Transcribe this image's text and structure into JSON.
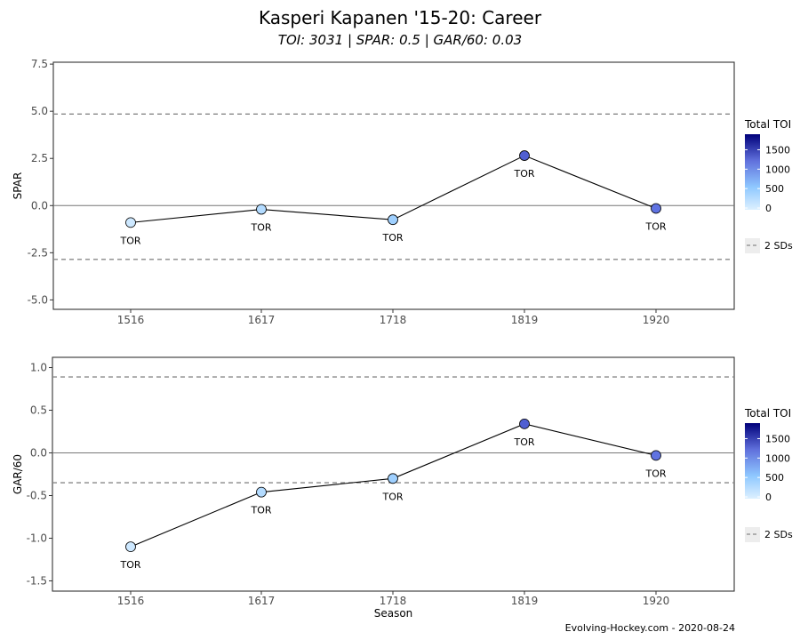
{
  "header": {
    "title": "Kasperi Kapanen '15-20: Career",
    "subtitle": "TOI: 3031 | SPAR: 0.5 | GAR/60: 0.03"
  },
  "footer": {
    "caption": "Evolving-Hockey.com - 2020-08-24"
  },
  "legend": {
    "title": "Total TOI",
    "ticks": [
      "1500",
      "1000",
      "500",
      "0"
    ],
    "sd_label": "2 SDs"
  },
  "chart_data": [
    {
      "type": "line",
      "ylabel": "SPAR",
      "xlabel": "",
      "categories": [
        "1516",
        "1617",
        "1718",
        "1819",
        "1920"
      ],
      "values": [
        -0.9,
        -0.2,
        -0.75,
        2.65,
        -0.15
      ],
      "toi": [
        60,
        160,
        240,
        1500,
        1100
      ],
      "point_labels": [
        "TOR",
        "TOR",
        "TOR",
        "TOR",
        "TOR"
      ],
      "ylim": [
        -5.5,
        7.6
      ],
      "yticks": [
        "7.5",
        "5.0",
        "2.5",
        "0.0",
        "-2.5",
        "-5.0"
      ],
      "sd_lines": [
        4.85,
        -2.85
      ],
      "zero_line": 0
    },
    {
      "type": "line",
      "ylabel": "GAR/60",
      "xlabel": "Season",
      "categories": [
        "1516",
        "1617",
        "1718",
        "1819",
        "1920"
      ],
      "values": [
        -1.1,
        -0.46,
        -0.3,
        0.34,
        -0.03
      ],
      "toi": [
        60,
        160,
        240,
        1500,
        1100
      ],
      "point_labels": [
        "TOR",
        "TOR",
        "TOR",
        "TOR",
        "TOR"
      ],
      "ylim": [
        -1.62,
        1.12
      ],
      "yticks": [
        "1.0",
        "0.5",
        "0.0",
        "-0.5",
        "-1.0",
        "-1.5"
      ],
      "sd_lines": [
        0.89,
        -0.35
      ],
      "zero_line": 0
    }
  ],
  "colors": {
    "low_toi": "#ddf0ff",
    "mid_toi": "#8fc8ff",
    "high_toi": "#5566d6",
    "max_toi": "#00007a",
    "sd_line": "#888888",
    "zero_line": "#777777"
  }
}
